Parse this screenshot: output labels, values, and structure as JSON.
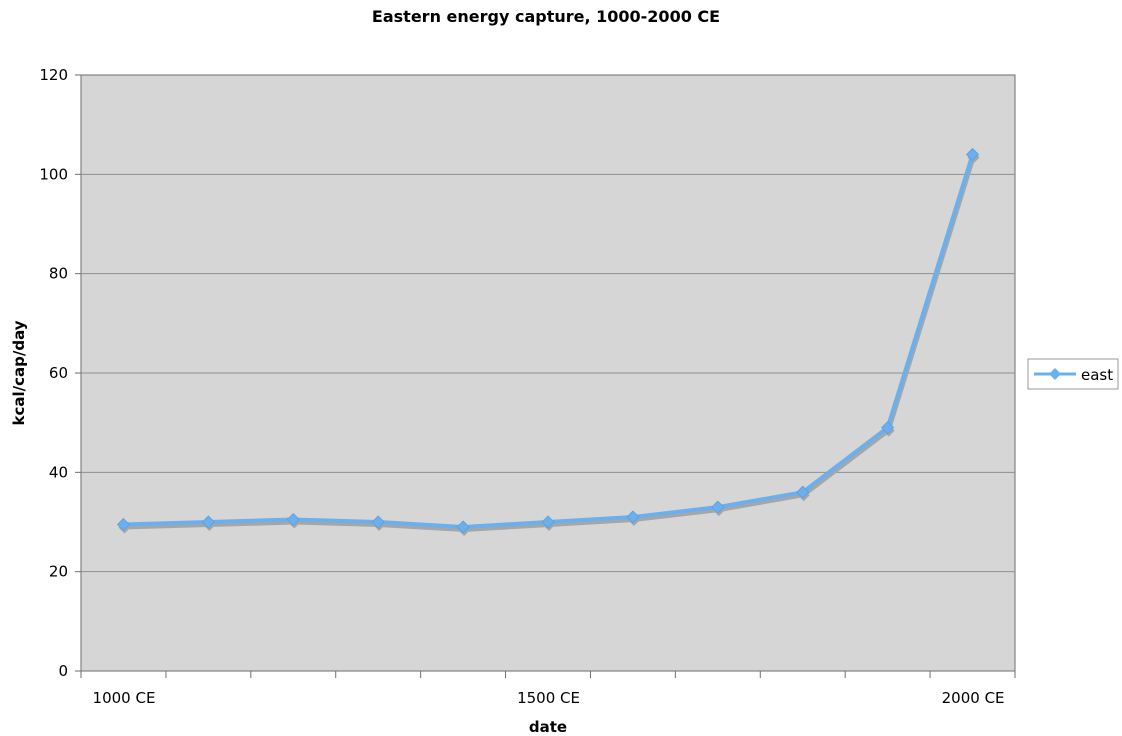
{
  "chart_data": {
    "type": "line",
    "title": "Eastern energy capture, 1000-2000 CE",
    "xlabel": "date",
    "ylabel": "kcal/cap/day",
    "ylim": [
      0,
      120
    ],
    "yticks": [
      0,
      20,
      40,
      60,
      80,
      100,
      120
    ],
    "xlim": [
      1000,
      2000
    ],
    "xtick_labels": [
      {
        "value": 1000,
        "label": "1000 CE"
      },
      {
        "value": 1500,
        "label": "1500 CE"
      },
      {
        "value": 2000,
        "label": "2000 CE"
      }
    ],
    "x_minor_ticks": [
      1000,
      1100,
      1200,
      1300,
      1400,
      1500,
      1600,
      1700,
      1800,
      1900,
      2000,
      2100
    ],
    "grid": true,
    "legend_position": "right",
    "series": [
      {
        "name": "east",
        "color": "#6ab0ee",
        "marker": "diamond",
        "x": [
          1050,
          1150,
          1250,
          1350,
          1450,
          1550,
          1650,
          1750,
          1850,
          1950,
          2050
        ],
        "y": [
          29.5,
          30,
          30.5,
          30,
          29,
          30,
          31,
          33,
          36,
          49,
          104
        ]
      }
    ],
    "colors": {
      "plot_background": "#d6d6d6",
      "gridline": "#8f8f8f",
      "axis": "#6e6e6e",
      "line_shadow": "#a6a6a6"
    }
  }
}
